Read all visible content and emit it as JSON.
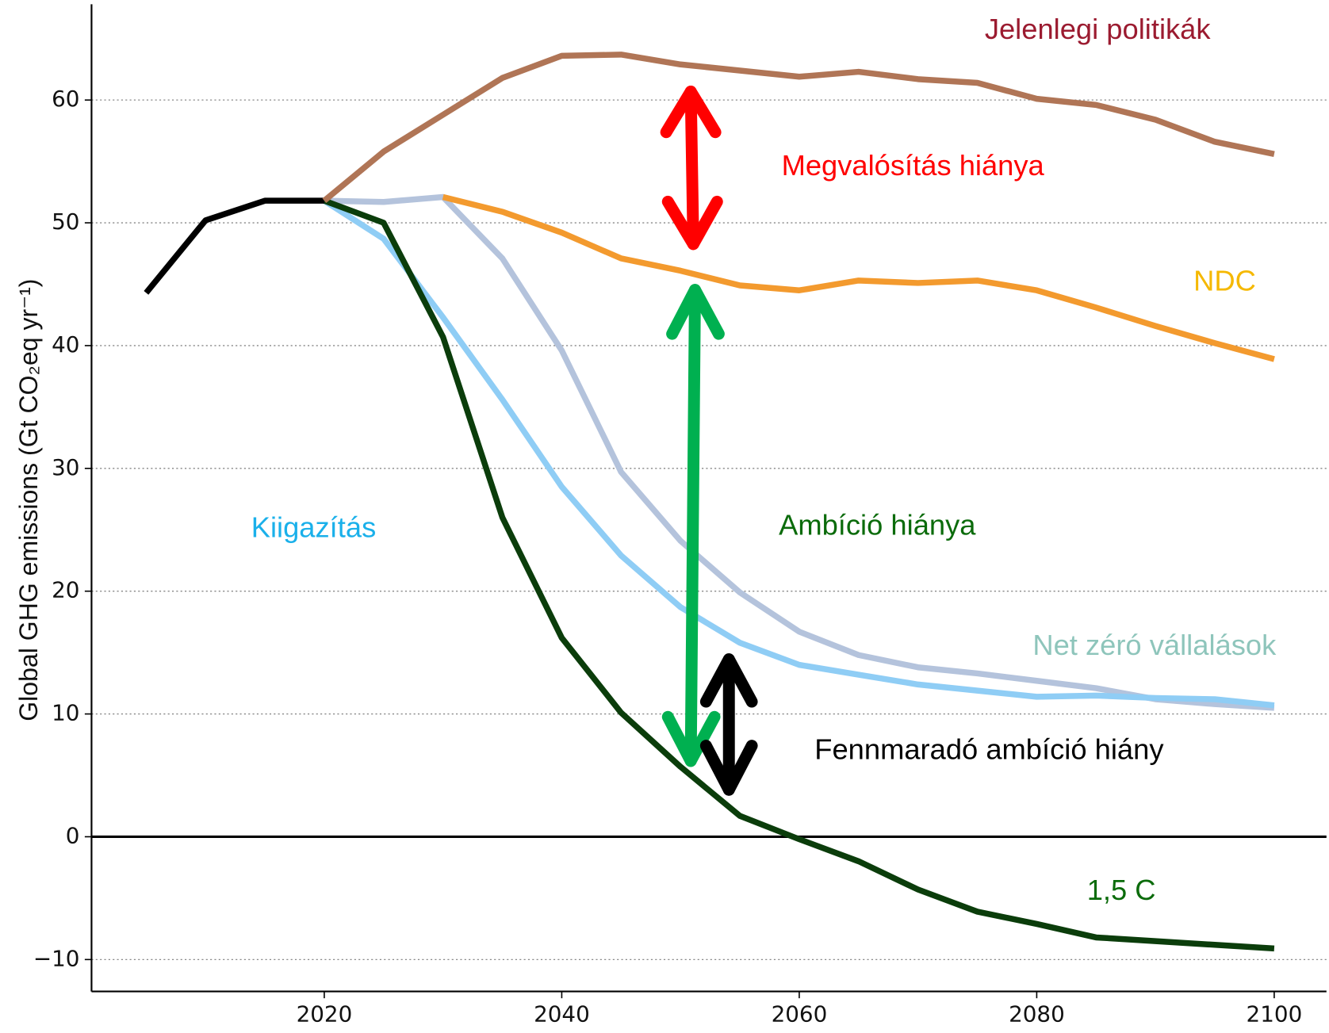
{
  "chart_data": {
    "type": "line",
    "ylabel": "Global GHG emissions (Gt CO₂eq yr⁻¹)",
    "x": [
      2005,
      2010,
      2015,
      2020,
      2025,
      2030,
      2035,
      2040,
      2045,
      2050,
      2055,
      2060,
      2065,
      2070,
      2075,
      2080,
      2085,
      2090,
      2095,
      2100
    ],
    "series": [
      {
        "name": "Net zéró vállalások",
        "color": "#b4c3dc",
        "label_color": "#8ec5bb",
        "values": [
          null,
          null,
          null,
          51.8,
          51.7,
          52.1,
          47.1,
          39.6,
          29.7,
          24.1,
          19.9,
          16.7,
          14.8,
          13.8,
          13.3,
          12.7,
          12.1,
          11.2,
          10.8,
          10.5
        ]
      },
      {
        "name": "Kiigazítás",
        "color": "#8fcdf5",
        "label_color": "#1ab0ea",
        "values": [
          null,
          null,
          null,
          51.8,
          48.7,
          42.3,
          35.6,
          28.5,
          22.9,
          18.7,
          15.8,
          14.0,
          13.2,
          12.4,
          11.9,
          11.4,
          11.5,
          11.3,
          11.2,
          10.7
        ]
      },
      {
        "name": "1,5 C",
        "color": "#0b3d0b",
        "label_color": "#0b6b0b",
        "values": [
          null,
          null,
          null,
          51.8,
          50.0,
          40.7,
          26.0,
          16.2,
          10.1,
          5.7,
          1.7,
          -0.2,
          -2.0,
          -4.3,
          -6.1,
          -7.1,
          -8.2,
          -8.5,
          -8.8,
          -9.1
        ]
      },
      {
        "color": "#000000",
        "values": [
          44.3,
          50.2,
          51.8,
          51.8,
          null,
          null,
          null,
          null,
          null,
          null,
          null,
          null,
          null,
          null,
          null,
          null,
          null,
          null,
          null,
          null
        ]
      },
      {
        "name": "NDC",
        "color": "#f39a2e",
        "label_color": "#f5b800",
        "values": [
          null,
          null,
          null,
          null,
          null,
          52.1,
          50.9,
          49.2,
          47.1,
          46.1,
          44.9,
          44.5,
          45.3,
          45.1,
          45.3,
          44.5,
          43.1,
          41.6,
          40.2,
          38.9
        ]
      },
      {
        "name": "Jelenlegi politikák",
        "color": "#b07556",
        "label_color": "#9b1b30",
        "values": [
          null,
          null,
          null,
          51.8,
          55.8,
          58.8,
          61.8,
          63.6,
          63.7,
          62.9,
          62.4,
          61.9,
          62.3,
          61.7,
          61.4,
          60.1,
          59.6,
          58.4,
          56.6,
          55.6
        ]
      }
    ],
    "annotations": [
      {
        "text": "Megvalósítás hiánya",
        "color": "#ff0000"
      },
      {
        "text": "Ambíció hiánya",
        "color": "#0b6b0b"
      },
      {
        "text": "Fennmaradó ambíció hiány",
        "color": "#000000"
      }
    ],
    "xlim": [
      2000.4,
      2104.4
    ],
    "ylim": [
      -12.6,
      67.8
    ],
    "xticks": [
      2020,
      2040,
      2060,
      2080,
      2100
    ],
    "yticks": [
      {
        "value": -10,
        "label": "−10"
      },
      0,
      10,
      20,
      30,
      40,
      50,
      60
    ],
    "grid": true
  }
}
